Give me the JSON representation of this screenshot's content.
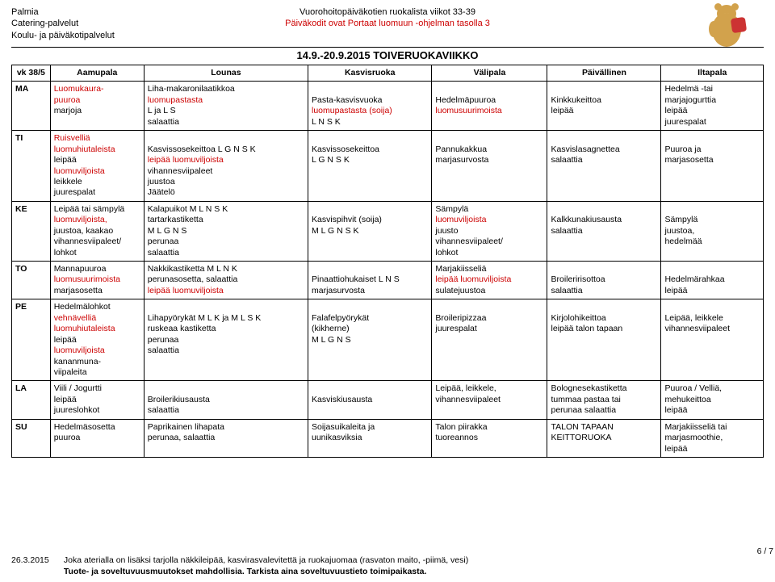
{
  "header": {
    "company_lines": [
      "Palmia",
      "Catering-palvelut",
      "Koulu- ja päiväkotipalvelut"
    ],
    "title_main": "Vuorohoitopäiväkotien ruokalista viikot 33-39",
    "title_sub": "Päiväkodit ovat Portaat luomuun -ohjelman tasolla 3",
    "week_title": "14.9.-20.9.2015 TOIVERUOKAVIIKKO"
  },
  "columns": {
    "vk": "vk 38/5",
    "aamupala": "Aamupala",
    "lounas": "Lounas",
    "kasvisruoka": "Kasvisruoka",
    "valipala": "Välipala",
    "paivallinen": "Päivällinen",
    "iltapala": "Iltapala"
  },
  "rows": [
    {
      "day": "MA",
      "aamu": [
        [
          "Luomukaura-",
          "red"
        ],
        [
          "puuroa",
          "red"
        ],
        [
          "marjoja",
          ""
        ]
      ],
      "lounas": [
        [
          "Liha-makaronilaatikkoa",
          ""
        ],
        [
          "luomupastasta",
          "red"
        ],
        [
          "L ja L S",
          ""
        ],
        [
          "salaattia",
          ""
        ]
      ],
      "kasvis": [
        [
          "",
          ""
        ],
        [
          "Pasta-kasvisvuoka",
          ""
        ],
        [
          "luomupastasta (soija)",
          "red"
        ],
        [
          "L N S K",
          ""
        ]
      ],
      "vali": [
        [
          "",
          ""
        ],
        [
          "Hedelmäpuuroa",
          ""
        ],
        [
          "luomusuurimoista",
          "red"
        ]
      ],
      "paiv": [
        [
          "",
          ""
        ],
        [
          "Kinkkukeittoa",
          ""
        ],
        [
          "leipää",
          ""
        ]
      ],
      "ilta": [
        [
          "Hedelmä -tai",
          ""
        ],
        [
          "marjajogurttia",
          ""
        ],
        [
          "leipää",
          ""
        ],
        [
          "juurespalat",
          ""
        ]
      ]
    },
    {
      "day": "TI",
      "aamu": [
        [
          "Ruisvelliä",
          "red"
        ],
        [
          "luomuhiutaleista",
          "red"
        ],
        [
          "leipää",
          ""
        ],
        [
          "luomuviljoista",
          "red"
        ],
        [
          "leikkele",
          ""
        ],
        [
          "juurespalat",
          ""
        ]
      ],
      "lounas": [
        [
          "",
          ""
        ],
        [
          "Kasvissosekeittoa L G N S K",
          ""
        ],
        [
          "leipää luomuviljoista",
          "red"
        ],
        [
          "vihannesviipaleet",
          ""
        ],
        [
          "juustoa",
          ""
        ],
        [
          "Jäätelö",
          ""
        ]
      ],
      "kasvis": [
        [
          "",
          ""
        ],
        [
          "Kasvissosekeittoa",
          ""
        ],
        [
          "L G N S K",
          ""
        ]
      ],
      "vali": [
        [
          "",
          ""
        ],
        [
          "Pannukakkua",
          ""
        ],
        [
          "marjasurvosta",
          ""
        ]
      ],
      "paiv": [
        [
          "",
          ""
        ],
        [
          "Kasvislasagnettea",
          ""
        ],
        [
          "salaattia",
          ""
        ]
      ],
      "ilta": [
        [
          "",
          ""
        ],
        [
          "Puuroa ja",
          ""
        ],
        [
          "marjasosetta",
          ""
        ]
      ]
    },
    {
      "day": "KE",
      "aamu": [
        [
          "Leipää tai sämpylä",
          ""
        ],
        [
          "luomuviljoista,",
          "red"
        ],
        [
          "juustoa, kaakao",
          ""
        ],
        [
          "vihannesviipaleet/",
          ""
        ],
        [
          "lohkot",
          ""
        ]
      ],
      "lounas": [
        [
          "Kalapuikot M L N S K",
          ""
        ],
        [
          "tartarkastiketta",
          ""
        ],
        [
          "M L G N S",
          ""
        ],
        [
          "perunaa",
          ""
        ],
        [
          "salaattia",
          ""
        ]
      ],
      "kasvis": [
        [
          "",
          ""
        ],
        [
          "Kasvispihvit (soija)",
          ""
        ],
        [
          "M L G N S K",
          ""
        ]
      ],
      "vali": [
        [
          "Sämpylä",
          ""
        ],
        [
          "luomuviljoista",
          "red"
        ],
        [
          "juusto",
          ""
        ],
        [
          "vihannesviipaleet/",
          ""
        ],
        [
          "lohkot",
          ""
        ]
      ],
      "paiv": [
        [
          "",
          ""
        ],
        [
          "Kalkkunakiusausta",
          ""
        ],
        [
          "salaattia",
          ""
        ]
      ],
      "ilta": [
        [
          "",
          ""
        ],
        [
          "Sämpylä",
          ""
        ],
        [
          "juustoa,",
          ""
        ],
        [
          "hedelmää",
          ""
        ]
      ]
    },
    {
      "day": "TO",
      "aamu": [
        [
          "Mannapuuroa",
          ""
        ],
        [
          "luomusuurimoista",
          "red"
        ],
        [
          "marjasosetta",
          ""
        ]
      ],
      "lounas": [
        [
          "Nakkikastiketta M L N K",
          ""
        ],
        [
          "perunasosetta, salaattia",
          ""
        ],
        [
          "leipää luomuviljoista",
          "red"
        ]
      ],
      "kasvis": [
        [
          "",
          ""
        ],
        [
          "Pinaattiohukaiset L N S",
          ""
        ],
        [
          "marjasurvosta",
          ""
        ]
      ],
      "vali": [
        [
          "Marjakiisseliä",
          ""
        ],
        [
          "leipää luomuviljoista",
          "red"
        ],
        [
          "sulatejuustoa",
          ""
        ]
      ],
      "paiv": [
        [
          "",
          ""
        ],
        [
          "Broileririsottoa",
          ""
        ],
        [
          "salaattia",
          ""
        ]
      ],
      "ilta": [
        [
          "",
          ""
        ],
        [
          "Hedelmärahkaa",
          ""
        ],
        [
          "leipää",
          ""
        ]
      ]
    },
    {
      "day": "PE",
      "aamu": [
        [
          "Hedelmälohkot",
          ""
        ],
        [
          "vehnävelliä",
          "red"
        ],
        [
          "luomuhiutaleista",
          "red"
        ],
        [
          "leipää",
          ""
        ],
        [
          "luomuviljoista",
          "red"
        ],
        [
          "kananmuna-",
          ""
        ],
        [
          "viipaleita",
          ""
        ]
      ],
      "lounas": [
        [
          "",
          ""
        ],
        [
          "Lihapyörykät M L K ja M L S K",
          ""
        ],
        [
          "ruskeaa kastiketta",
          ""
        ],
        [
          "perunaa",
          ""
        ],
        [
          "salaattia",
          ""
        ]
      ],
      "kasvis": [
        [
          "",
          ""
        ],
        [
          "Falafelpyörykät",
          ""
        ],
        [
          "(kikherne)",
          ""
        ],
        [
          "M L G N S",
          ""
        ]
      ],
      "vali": [
        [
          "",
          ""
        ],
        [
          "Broileripizzaa",
          ""
        ],
        [
          "juurespalat",
          ""
        ]
      ],
      "paiv": [
        [
          "",
          ""
        ],
        [
          "Kirjolohikeittoa",
          ""
        ],
        [
          "leipää talon tapaan",
          ""
        ]
      ],
      "ilta": [
        [
          "",
          ""
        ],
        [
          "Leipää, leikkele",
          ""
        ],
        [
          "vihannesviipaleet",
          ""
        ]
      ]
    },
    {
      "day": "LA",
      "aamu": [
        [
          "Viili / Jogurtti",
          ""
        ],
        [
          "leipää",
          ""
        ],
        [
          "juureslohkot",
          ""
        ]
      ],
      "lounas": [
        [
          "",
          ""
        ],
        [
          "Broilerikiusausta",
          ""
        ],
        [
          "salaattia",
          ""
        ]
      ],
      "kasvis": [
        [
          "",
          ""
        ],
        [
          "Kasviskiusausta",
          ""
        ]
      ],
      "vali": [
        [
          "Leipää, leikkele,",
          ""
        ],
        [
          "vihannesviipaleet",
          ""
        ]
      ],
      "paiv": [
        [
          "Bolognesekastiketta",
          ""
        ],
        [
          "tummaa pastaa tai",
          ""
        ],
        [
          "perunaa salaattia",
          ""
        ]
      ],
      "ilta": [
        [
          "Puuroa / Velliä,",
          ""
        ],
        [
          "mehukeittoa",
          ""
        ],
        [
          "leipää",
          ""
        ]
      ]
    },
    {
      "day": "SU",
      "aamu": [
        [
          "Hedelmäsosetta",
          ""
        ],
        [
          "puuroa",
          ""
        ]
      ],
      "lounas": [
        [
          "Paprikainen lihapata",
          ""
        ],
        [
          "perunaa, salaattia",
          ""
        ]
      ],
      "kasvis": [
        [
          "Soijasuikaleita ja",
          ""
        ],
        [
          "uunikasviksia",
          ""
        ]
      ],
      "vali": [
        [
          "Talon piirakka",
          ""
        ],
        [
          "tuoreannos",
          ""
        ]
      ],
      "paiv": [
        [
          "TALON TAPAAN",
          ""
        ],
        [
          "KEITTORUOKA",
          ""
        ]
      ],
      "ilta": [
        [
          "Marjakiisseliä tai",
          ""
        ],
        [
          "marjasmoothie,",
          ""
        ],
        [
          "leipää",
          ""
        ]
      ]
    }
  ],
  "footer": {
    "date": "26.3.2015",
    "line1": "Joka aterialla on lisäksi tarjolla näkkileipää, kasvirasvalevitettä ja ruokajuomaa (rasvaton maito, -piimä, vesi)",
    "line2": "Tuote- ja soveltuvuusmuutokset mahdollisia. Tarkista aina soveltuvuustieto toimipaikasta.",
    "page": "6 / 7"
  }
}
